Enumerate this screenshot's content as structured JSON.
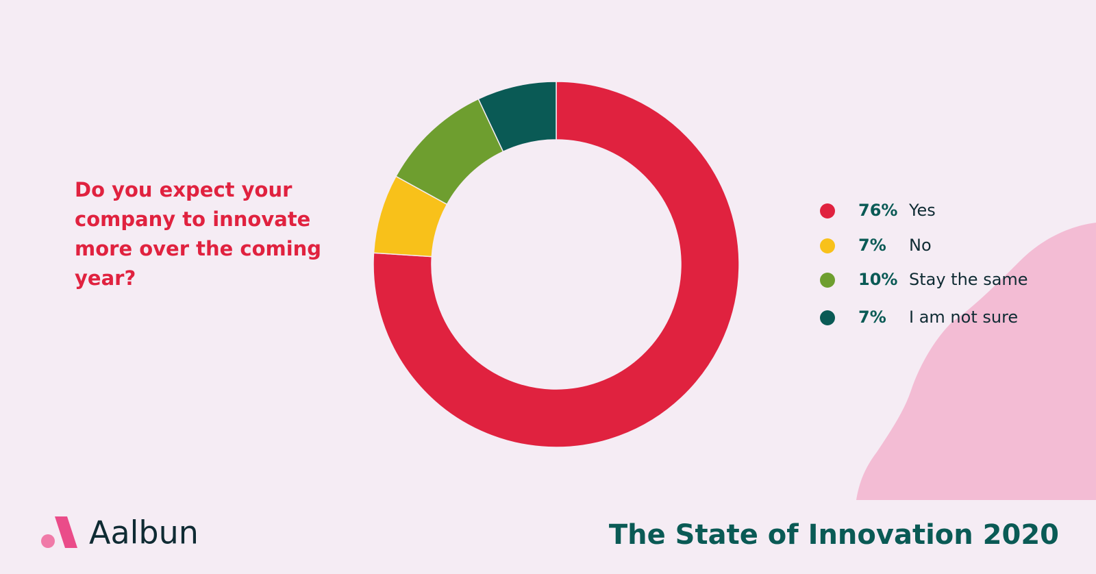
{
  "chart_data": {
    "type": "pie",
    "donut": true,
    "title": "Do you expect your company to innovate more over the coming year?",
    "categories": [
      "Yes",
      "No",
      "Stay the same",
      "I am not sure"
    ],
    "values": [
      76,
      7,
      10,
      7
    ],
    "value_labels": [
      "76%",
      "7%",
      "10%",
      "7%"
    ],
    "colors": [
      "#e0223f",
      "#f8c11a",
      "#6e9e2f",
      "#0a5a55"
    ]
  },
  "brand": "Aalbun",
  "report_title": "The State of Innovation 2020"
}
